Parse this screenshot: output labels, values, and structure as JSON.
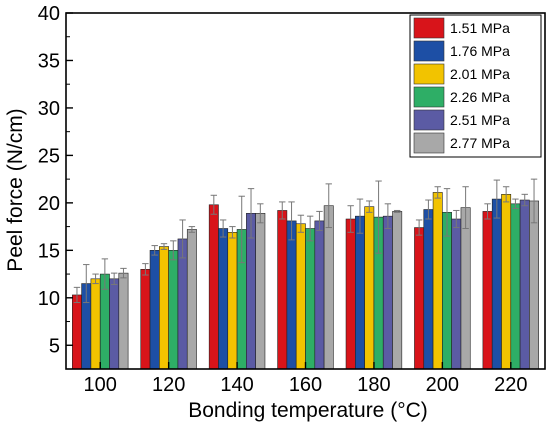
{
  "chart_data": {
    "type": "bar",
    "xlabel": "Bonding temperature (°C)",
    "ylabel": "Peel force (N/cm)",
    "ylim": [
      2.5,
      40
    ],
    "yticks": [
      5,
      10,
      15,
      20,
      25,
      30,
      35,
      40
    ],
    "categories": [
      "100",
      "120",
      "140",
      "160",
      "180",
      "200",
      "220"
    ],
    "legend_position": "top-right",
    "grid": false,
    "series": [
      {
        "name": "1.51 MPa",
        "color": "#d8141a",
        "values": [
          10.3,
          13.0,
          19.8,
          19.2,
          18.3,
          17.4,
          19.1
        ],
        "errors": [
          0.8,
          0.6,
          1.0,
          0.9,
          1.4,
          0.8,
          0.8
        ]
      },
      {
        "name": "1.76 MPa",
        "color": "#1d4fa5",
        "values": [
          11.5,
          15.0,
          17.3,
          18.1,
          18.6,
          19.3,
          20.4
        ],
        "errors": [
          2.0,
          0.5,
          0.9,
          2.0,
          1.8,
          1.0,
          2.0
        ]
      },
      {
        "name": "2.01 MPa",
        "color": "#f2c300",
        "values": [
          12.0,
          15.4,
          16.9,
          17.8,
          19.6,
          21.1,
          20.9
        ],
        "errors": [
          0.5,
          0.3,
          0.6,
          0.9,
          0.6,
          0.6,
          0.8
        ]
      },
      {
        "name": "2.26 MPa",
        "color": "#2eae66",
        "values": [
          12.5,
          15.0,
          17.2,
          17.3,
          18.5,
          19.0,
          19.9
        ],
        "errors": [
          1.6,
          1.0,
          3.5,
          1.3,
          3.8,
          2.5,
          0.5
        ]
      },
      {
        "name": "2.51 MPa",
        "color": "#5b5ba4",
        "values": [
          12.0,
          16.2,
          18.9,
          18.1,
          18.6,
          18.3,
          20.3
        ],
        "errors": [
          0.6,
          2.0,
          2.6,
          1.0,
          1.3,
          0.9,
          0.6
        ]
      },
      {
        "name": "2.77 MPa",
        "color": "#a8a8a8",
        "values": [
          12.6,
          17.2,
          18.9,
          19.7,
          19.1,
          19.5,
          20.2
        ],
        "errors": [
          0.5,
          0.3,
          1.0,
          2.3,
          0.1,
          2.2,
          2.3
        ]
      }
    ]
  }
}
